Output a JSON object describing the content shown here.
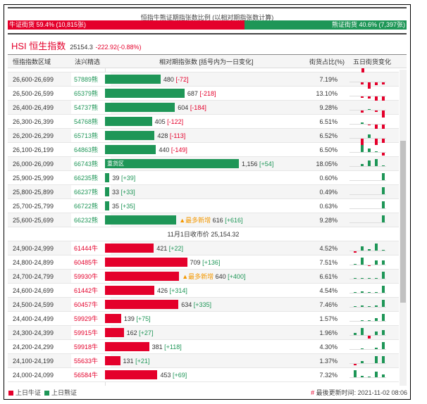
{
  "header": {
    "title": "恒指牛熊证期指张数比例 (以相对期指张数计算)",
    "bull_label": "牛证街货 59.4% (10,815张)",
    "bear_label": "熊证街货 40.6% (7,397张)",
    "bull_pct": 59.4
  },
  "index": {
    "name": "HSI 恒生指数",
    "price": "25154.3",
    "change": "-222.92(-0.88%)"
  },
  "columns": [
    "恒指指数区域",
    "法兴精选",
    "相对期指张数 [括号内为一日变化]",
    "街货占比(%)",
    "五日街货变化"
  ],
  "colors": {
    "bull": "#e4002b",
    "bear": "#1e9657",
    "accent": "#f39800"
  },
  "bear_rows": [
    {
      "range": "26,600-26,699",
      "code": "57889熊",
      "qty": 480,
      "qty_label": "480",
      "chg": "[-72]",
      "pct": "7.19%",
      "spark": [
        0,
        -3,
        -9,
        -4,
        -3
      ]
    },
    {
      "range": "26,500-26,599",
      "code": "65379熊",
      "qty": 687,
      "qty_label": "687",
      "chg": "[-218]",
      "pct": "13.10%",
      "spark": [
        0,
        -2,
        -3,
        -6,
        -10
      ]
    },
    {
      "range": "26,400-26,499",
      "code": "54737熊",
      "qty": 604,
      "qty_label": "604",
      "chg": "[-184]",
      "pct": "9.28%",
      "spark": [
        0,
        -3,
        1,
        -2,
        -10
      ]
    },
    {
      "range": "26,300-26,399",
      "code": "54768熊",
      "qty": 405,
      "qty_label": "405",
      "chg": "[-122]",
      "pct": "6.51%",
      "spark": [
        0,
        2,
        -1,
        -8,
        -10
      ]
    },
    {
      "range": "26,200-26,299",
      "code": "65713熊",
      "qty": 428,
      "qty_label": "428",
      "chg": "[-113]",
      "pct": "6.52%",
      "spark": [
        0,
        -9,
        5,
        -9,
        -6
      ]
    },
    {
      "range": "26,100-26,199",
      "code": "64863熊",
      "qty": 440,
      "qty_label": "440",
      "chg": "[-149]",
      "pct": "6.50%",
      "spark": [
        0,
        10,
        5,
        1,
        -4
      ]
    },
    {
      "range": "26,000-26,099",
      "code": "66743熊",
      "qty": 1156,
      "qty_label": "1,156",
      "chg": "[+54]",
      "pct": "18.05%",
      "spark": [
        0,
        3,
        8,
        10,
        1
      ],
      "tag": "重货区"
    },
    {
      "range": "25,900-25,999",
      "code": "66235熊",
      "qty": 39,
      "qty_label": "39",
      "chg": "[+39]",
      "pct": "0.60%",
      "spark": [
        0,
        0,
        0,
        0,
        10
      ]
    },
    {
      "range": "25,800-25,899",
      "code": "66237熊",
      "qty": 33,
      "qty_label": "33",
      "chg": "[+33]",
      "pct": "0.49%",
      "spark": [
        0,
        0,
        0,
        0,
        10
      ]
    },
    {
      "range": "25,700-25,799",
      "code": "66722熊",
      "qty": 35,
      "qty_label": "35",
      "chg": "[+35]",
      "pct": "0.63%",
      "spark": [
        0,
        0,
        0,
        0,
        10
      ]
    },
    {
      "range": "25,600-25,699",
      "code": "66232熊",
      "qty": 616,
      "qty_label": "616",
      "chg": "[+616]",
      "pct": "9.28%",
      "spark": [
        0,
        0,
        0,
        0,
        10
      ],
      "note": "▲最多新增"
    }
  ],
  "close_label": "11月1日收市价 25,154.32",
  "bull_rows": [
    {
      "range": "24,900-24,999",
      "code": "61444牛",
      "qty": 421,
      "qty_label": "421",
      "chg": "[+22]",
      "pct": "4.52%",
      "spark": [
        -2,
        6,
        2,
        10,
        1
      ]
    },
    {
      "range": "24,800-24,899",
      "code": "60485牛",
      "qty": 709,
      "qty_label": "709",
      "chg": "[+136]",
      "pct": "7.51%",
      "spark": [
        1,
        10,
        -1,
        6,
        6
      ]
    },
    {
      "range": "24,700-24,799",
      "code": "59930牛",
      "qty": 640,
      "qty_label": "640",
      "chg": "[+400]",
      "pct": "6.61%",
      "spark": [
        1,
        1,
        1,
        1,
        10
      ],
      "note": "▲最多新增"
    },
    {
      "range": "24,600-24,699",
      "code": "61442牛",
      "qty": 426,
      "qty_label": "426",
      "chg": "[+314]",
      "pct": "4.54%",
      "spark": [
        1,
        2,
        1,
        1,
        10
      ]
    },
    {
      "range": "24,500-24,599",
      "code": "60457牛",
      "qty": 634,
      "qty_label": "634",
      "chg": "[+335]",
      "pct": "7.46%",
      "spark": [
        1,
        2,
        1,
        2,
        10
      ]
    },
    {
      "range": "24,400-24,499",
      "code": "59929牛",
      "qty": 139,
      "qty_label": "139",
      "chg": "[+75]",
      "pct": "1.57%",
      "spark": [
        0,
        1,
        1,
        4,
        10
      ]
    },
    {
      "range": "24,300-24,399",
      "code": "59915牛",
      "qty": 162,
      "qty_label": "162",
      "chg": "[+27]",
      "pct": "1.96%",
      "spark": [
        3,
        10,
        -4,
        5,
        7
      ]
    },
    {
      "range": "24,200-24,299",
      "code": "59918牛",
      "qty": 381,
      "qty_label": "381",
      "chg": "[+118]",
      "pct": "4.30%",
      "spark": [
        0,
        1,
        0,
        2,
        10
      ]
    },
    {
      "range": "24,100-24,199",
      "code": "55633牛",
      "qty": 131,
      "qty_label": "131",
      "chg": "[+21]",
      "pct": "1.37%",
      "spark": [
        -2,
        3,
        0,
        10,
        10
      ]
    },
    {
      "range": "24,000-24,099",
      "code": "56584牛",
      "qty": 453,
      "qty_label": "453",
      "chg": "[+69]",
      "pct": "7.32%",
      "spark": [
        10,
        2,
        1,
        8,
        4
      ]
    }
  ],
  "legend": {
    "bull": "上日牛证",
    "bear": "上日熊证"
  },
  "update": {
    "hash": "#",
    "label": "最後更新时间: 2021-11-02 08:06"
  }
}
